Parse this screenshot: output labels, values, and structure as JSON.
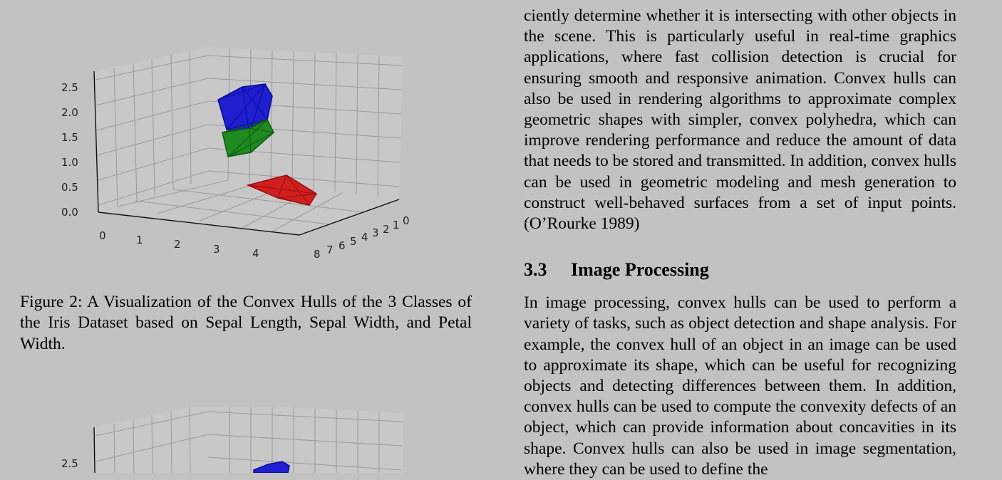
{
  "figure1": {
    "chart_data": {
      "type": "scatter3d",
      "z_ticks": [
        "2.5",
        "2.0",
        "1.5",
        "1.0",
        "0.5",
        "0.0"
      ],
      "x_ticks": [
        "0",
        "1",
        "2",
        "3",
        "4"
      ],
      "y_ticks": [
        "8",
        "7",
        "6",
        "5",
        "4",
        "3",
        "2",
        "1",
        "0"
      ],
      "series": [
        {
          "color": "#1f1fd0",
          "shape": "convex-hull"
        },
        {
          "color": "#1f8a1f",
          "shape": "convex-hull"
        },
        {
          "color": "#d01f1f",
          "shape": "convex-hull"
        }
      ]
    }
  },
  "caption": "Figure 2: A Visualization of the Convex Hulls of the 3 Classes of the Iris Dataset based on Sepal Length, Sepal Width, and Petal Width.",
  "figure2": {
    "z_ticks": [
      "2.5"
    ]
  },
  "right_column": {
    "para1": "ciently determine whether it is intersecting with other objects in the scene. This is particularly useful in real-time graphics applications, where fast collision detection is crucial for ensuring smooth and responsive animation. Convex hulls can also be used in rendering algorithms to approximate complex geometric shapes with simpler, convex polyhedra, which can improve rendering performance and reduce the amount of data that needs to be stored and transmitted. In addition, convex hulls can be used in geometric modeling and mesh generation to construct well-behaved surfaces from a set of input points. (O’Rourke 1989)",
    "section_number": "3.3",
    "section_title": "Image Processing",
    "para2": "In image processing, convex hulls can be used to perform a variety of tasks, such as object detection and shape analysis. For example, the convex hull of an object in an image can be used to approximate its shape, which can be useful for recognizing objects and detecting differences between them. In addition, convex hulls can be used to compute the convexity defects of an object, which can provide information about concavities in its shape. Convex hulls can also be used in image segmentation, where they can be used to define the"
  }
}
